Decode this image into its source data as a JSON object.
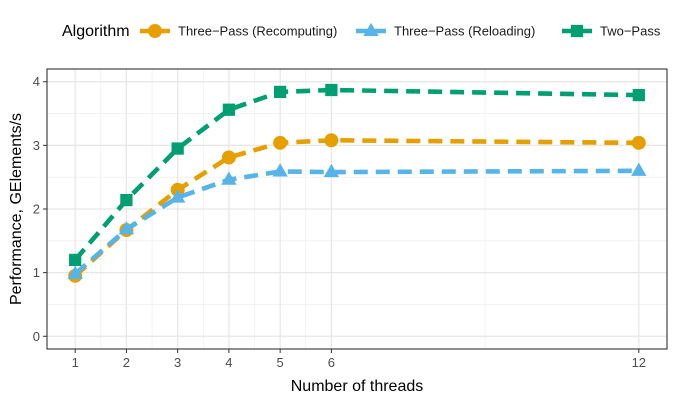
{
  "chart_data": {
    "type": "line",
    "title": "",
    "xlabel": "Number of threads",
    "ylabel": "Performance, GElements/s",
    "xlim": [
      0.45,
      12.55
    ],
    "ylim": [
      -0.2,
      4.2
    ],
    "x_ticks": [
      1,
      2,
      3,
      4,
      5,
      6,
      12
    ],
    "y_ticks": [
      0,
      1,
      2,
      3,
      4
    ],
    "grid": true,
    "legend": {
      "title": "Algorithm",
      "position": "top"
    },
    "series": [
      {
        "name": "Three−Pass (Recomputing)",
        "color": "#E69F00",
        "marker": "circle",
        "x": [
          1,
          2,
          3,
          4,
          5,
          6,
          12
        ],
        "y": [
          0.95,
          1.67,
          2.3,
          2.81,
          3.04,
          3.08,
          3.04
        ]
      },
      {
        "name": "Three−Pass (Reloading)",
        "color": "#56B4E9",
        "marker": "triangle",
        "x": [
          1,
          2,
          3,
          4,
          5,
          6,
          12
        ],
        "y": [
          0.98,
          1.68,
          2.18,
          2.46,
          2.59,
          2.58,
          2.6
        ]
      },
      {
        "name": "Two−Pass",
        "color": "#009E73",
        "marker": "square",
        "x": [
          1,
          2,
          3,
          4,
          5,
          6,
          12
        ],
        "y": [
          1.2,
          2.14,
          2.95,
          3.56,
          3.84,
          3.87,
          3.79
        ]
      }
    ]
  }
}
